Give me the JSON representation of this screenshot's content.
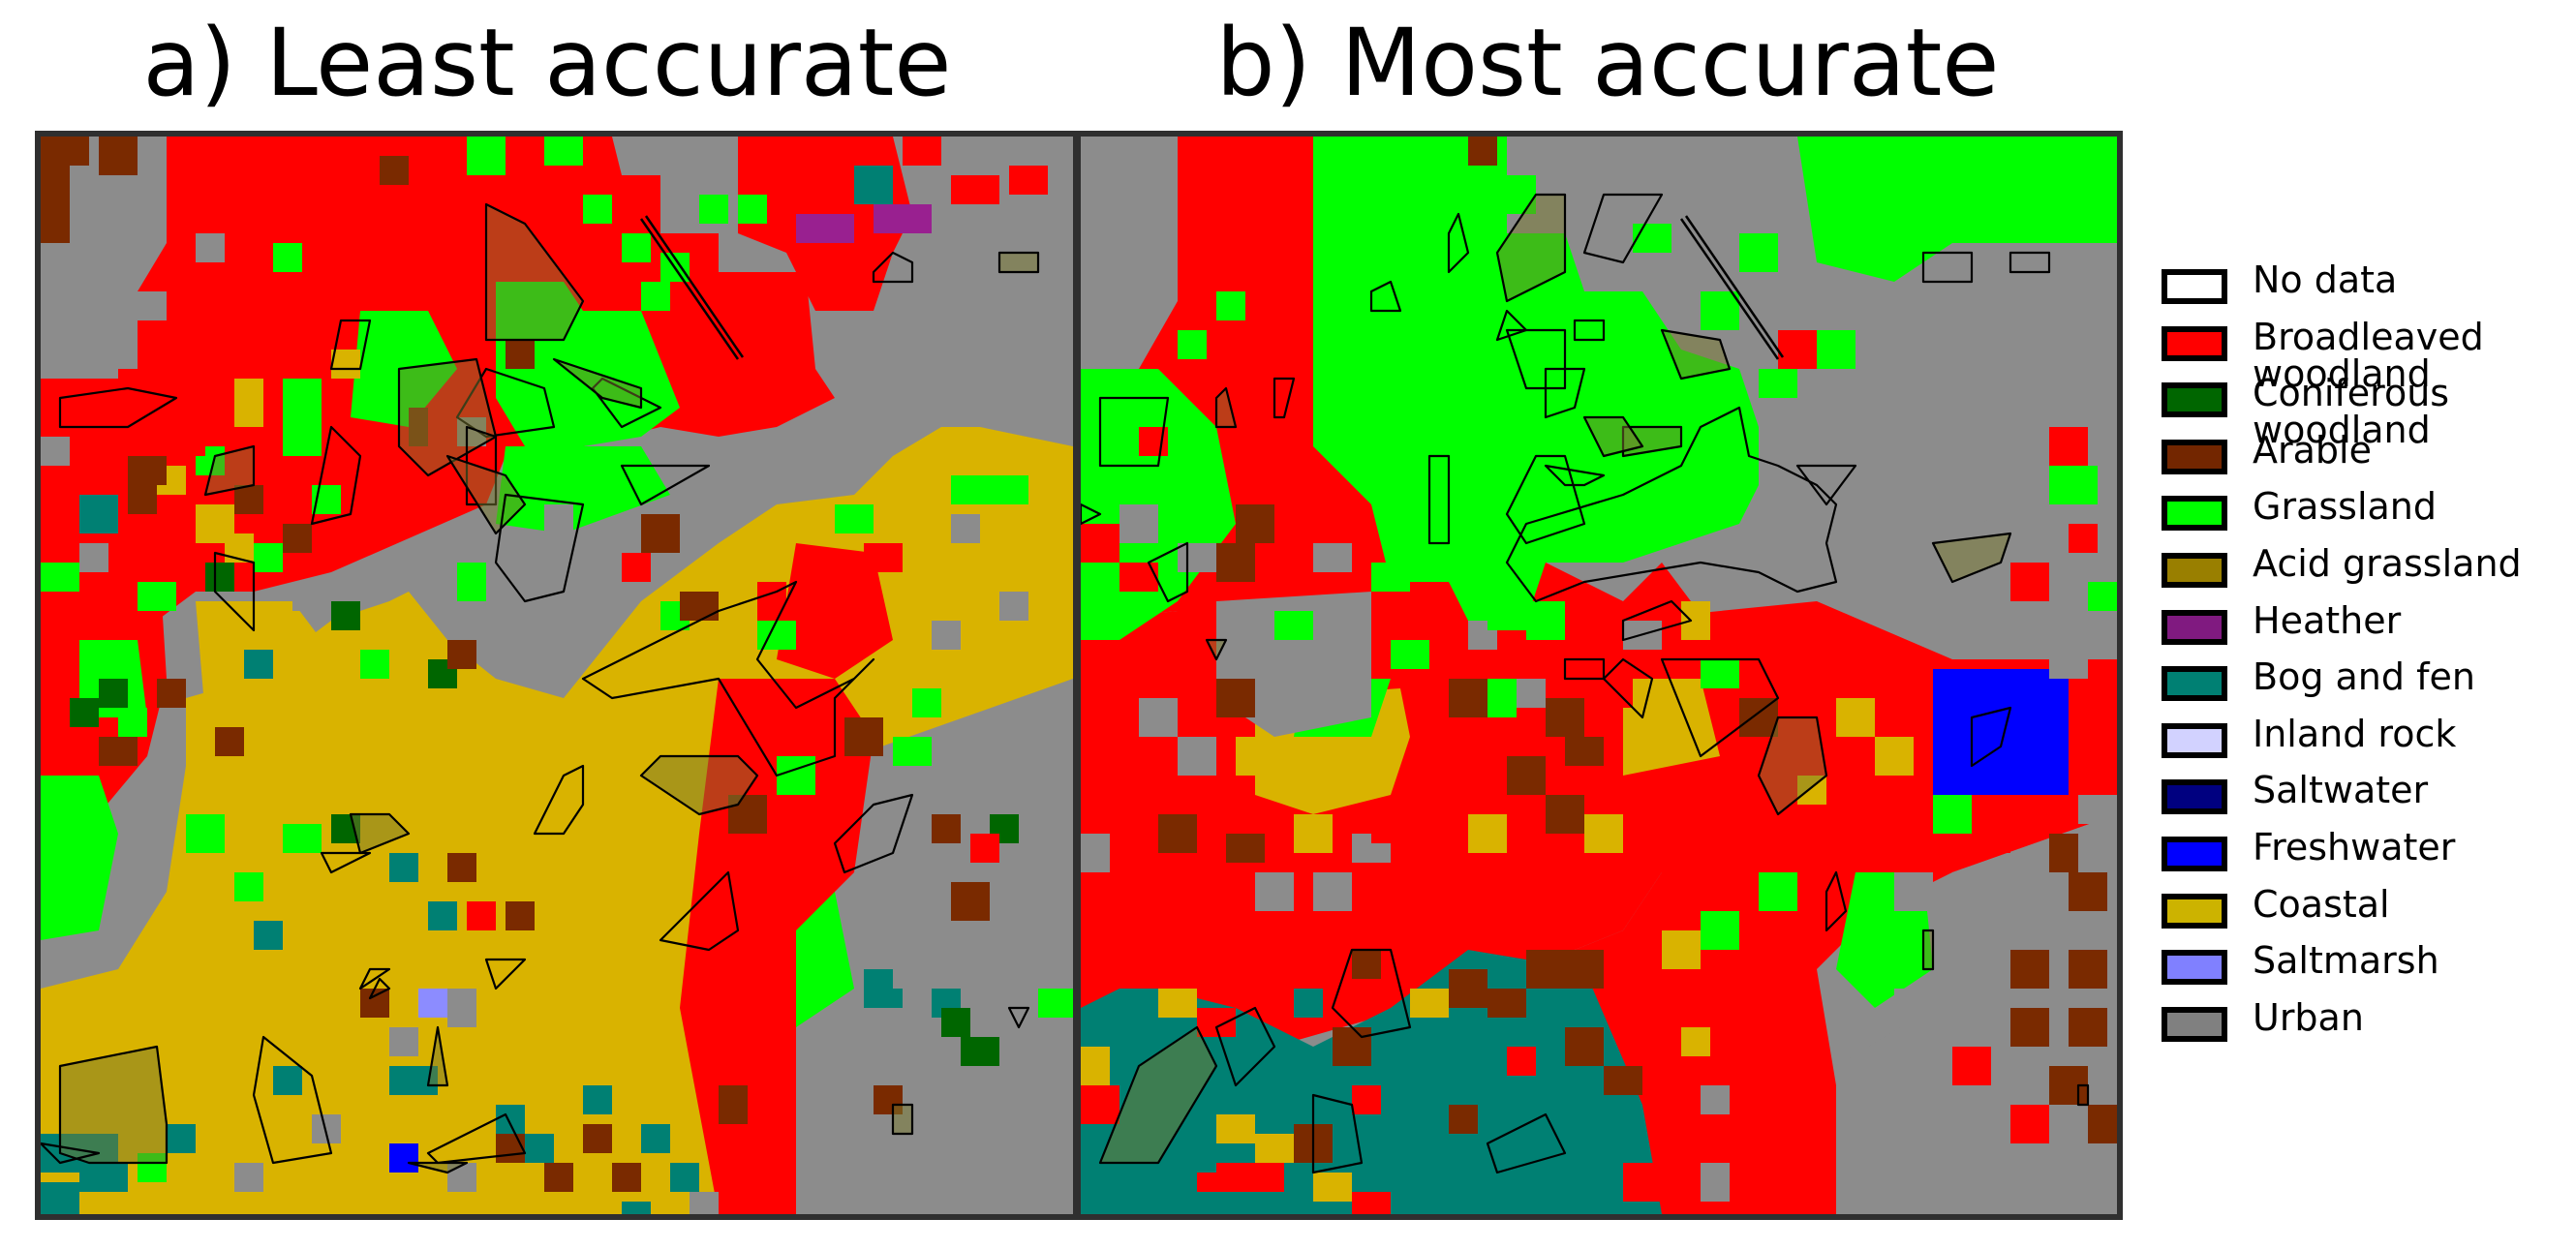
{
  "titles": {
    "a": "a) Least accurate",
    "b": "b) Most accurate"
  },
  "legend": [
    {
      "label": "No data",
      "color": "#ffffff"
    },
    {
      "label": "Broadleaved\nwoodland",
      "color": "#ff0000"
    },
    {
      "label": "Coniferous\nwoodland",
      "color": "#006600"
    },
    {
      "label": "Arable",
      "color": "#732600"
    },
    {
      "label": "Grassland",
      "color": "#00ff00"
    },
    {
      "label": "Acid grassland",
      "color": "#997f00"
    },
    {
      "label": "Heather",
      "color": "#801a80"
    },
    {
      "label": "Bog and fen",
      "color": "#008073"
    },
    {
      "label": "Inland rock",
      "color": "#d2d2ff"
    },
    {
      "label": "Saltwater",
      "color": "#000080"
    },
    {
      "label": "Freshwater",
      "color": "#0000ff"
    },
    {
      "label": "Coastal",
      "color": "#ccb300"
    },
    {
      "label": "Saltmarsh",
      "color": "#8080ff"
    },
    {
      "label": "Urban",
      "color": "#808080"
    }
  ]
}
